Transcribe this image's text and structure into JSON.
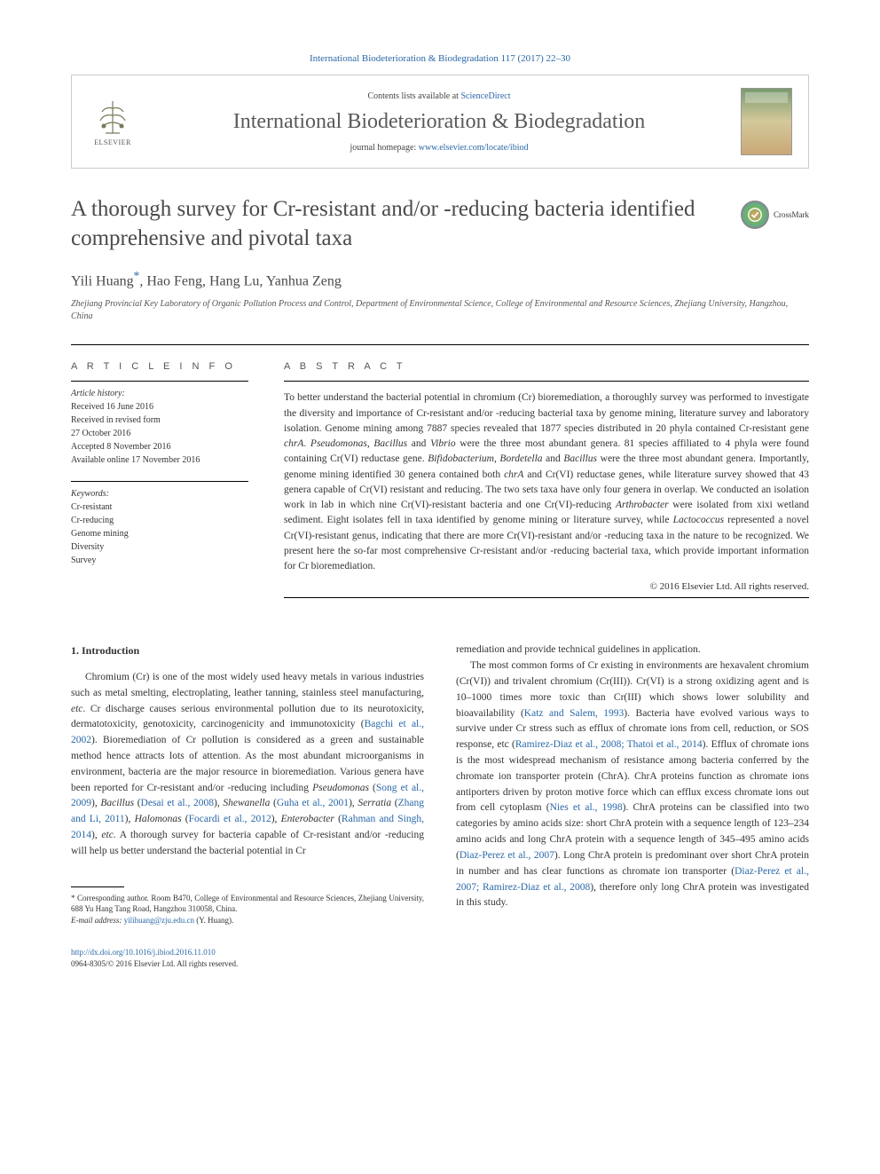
{
  "journal_ref": "International Biodeterioration & Biodegradation 117 (2017) 22–30",
  "header": {
    "contents_prefix": "Contents lists available at ",
    "contents_link": "ScienceDirect",
    "journal_title": "International Biodeterioration & Biodegradation",
    "homepage_prefix": "journal homepage: ",
    "homepage_link": "www.elsevier.com/locate/ibiod",
    "publisher": "ELSEVIER"
  },
  "article": {
    "title": "A thorough survey for Cr-resistant and/or -reducing bacteria identified comprehensive and pivotal taxa",
    "crossmark": "CrossMark",
    "authors_html": "Yili Huang<sup class=\"asterisk\">*</sup>, Hao Feng, Hang Lu, Yanhua Zeng",
    "affiliation": "Zhejiang Provincial Key Laboratory of Organic Pollution Process and Control, Department of Environmental Science, College of Environmental and Resource Sciences, Zhejiang University, Hangzhou, China"
  },
  "info": {
    "heading": "A R T I C L E  I N F O",
    "history_label": "Article history:",
    "history": [
      "Received 16 June 2016",
      "Received in revised form",
      "27 October 2016",
      "Accepted 8 November 2016",
      "Available online 17 November 2016"
    ],
    "keywords_label": "Keywords:",
    "keywords": [
      "Cr-resistant",
      "Cr-reducing",
      "Genome mining",
      "Diversity",
      "Survey"
    ]
  },
  "abstract": {
    "heading": "A B S T R A C T",
    "text_html": "To better understand the bacterial potential in chromium (Cr) bioremediation, a thoroughly survey was performed to investigate the diversity and importance of Cr-resistant and/or -reducing bacterial taxa by genome mining, literature survey and laboratory isolation. Genome mining among 7887 species revealed that 1877 species distributed in 20 phyla contained Cr-resistant gene <span class=\"italic\">chrA</span>. <span class=\"italic\">Pseudomonas</span>, <span class=\"italic\">Bacillus</span> and <span class=\"italic\">Vibrio</span> were the three most abundant genera. 81 species affiliated to 4 phyla were found containing Cr(VI) reductase gene. <span class=\"italic\">Bifidobacterium</span>, <span class=\"italic\">Bordetella</span> and <span class=\"italic\">Bacillus</span> were the three most abundant genera. Importantly, genome mining identified 30 genera contained both <span class=\"italic\">chrA</span> and Cr(VI) reductase genes, while literature survey showed that 43 genera capable of Cr(VI) resistant and reducing. The two sets taxa have only four genera in overlap. We conducted an isolation work in lab in which nine Cr(VI)-resistant bacteria and one Cr(VI)-reducing <span class=\"italic\">Arthrobacter</span> were isolated from xixi wetland sediment. Eight isolates fell in taxa identified by genome mining or literature survey, while <span class=\"italic\">Lactococcus</span> represented a novel Cr(VI)-resistant genus, indicating that there are more Cr(VI)-resistant and/or -reducing taxa in the nature to be recognized. We present here the so-far most comprehensive Cr-resistant and/or -reducing bacterial taxa, which provide important information for Cr bioremediation.",
    "copyright": "© 2016 Elsevier Ltd. All rights reserved."
  },
  "body": {
    "section_number": "1.",
    "section_title": "Introduction",
    "col1_html": "Chromium (Cr) is one of the most widely used heavy metals in various industries such as metal smelting, electroplating, leather tanning, stainless steel manufacturing, <span class=\"italic\">etc</span>. Cr discharge causes serious environmental pollution due to its neurotoxicity, dermatotoxicity, genotoxicity, carcinogenicity and immunotoxicity (<span class=\"ref-link\">Bagchi et al., 2002</span>). Bioremediation of Cr pollution is considered as a green and sustainable method hence attracts lots of attention. As the most abundant microorganisms in environment, bacteria are the major resource in bioremediation. Various genera have been reported for Cr-resistant and/or -reducing including <span class=\"italic\">Pseudomonas</span> (<span class=\"ref-link\">Song et al., 2009</span>), <span class=\"italic\">Bacillus</span> (<span class=\"ref-link\">Desai et al., 2008</span>), <span class=\"italic\">Shewanella</span> (<span class=\"ref-link\">Guha et al., 2001</span>), <span class=\"italic\">Serratia</span> (<span class=\"ref-link\">Zhang and Li, 2011</span>), <span class=\"italic\">Halomonas</span> (<span class=\"ref-link\">Focardi et al., 2012</span>), <span class=\"italic\">Enterobacter</span> (<span class=\"ref-link\">Rahman and Singh, 2014</span>), <span class=\"italic\">etc</span>. A thorough survey for bacteria capable of Cr-resistant and/or -reducing will help us better understand the bacterial potential in Cr",
    "col2_p1_html": "remediation and provide technical guidelines in application.",
    "col2_p2_html": "The most common forms of Cr existing in environments are hexavalent chromium (Cr(VI)) and trivalent chromium (Cr(III)). Cr(VI) is a strong oxidizing agent and is 10–1000 times more toxic than Cr(III) which shows lower solubility and bioavailability (<span class=\"ref-link\">Katz and Salem, 1993</span>). Bacteria have evolved various ways to survive under Cr stress such as efflux of chromate ions from cell, reduction, or SOS response, etc (<span class=\"ref-link\">Ramirez-Diaz et al., 2008; Thatoi et al., 2014</span>). Efflux of chromate ions is the most widespread mechanism of resistance among bacteria conferred by the chromate ion transporter protein (ChrA). ChrA proteins function as chromate ions antiporters driven by proton motive force which can efflux excess chromate ions out from cell cytoplasm (<span class=\"ref-link\">Nies et al., 1998</span>). ChrA proteins can be classified into two categories by amino acids size: short ChrA protein with a sequence length of 123–234 amino acids and long ChrA protein with a sequence length of 345–495 amino acids (<span class=\"ref-link\">Diaz-Perez et al., 2007</span>). Long ChrA protein is predominant over short ChrA protein in number and has clear functions as chromate ion transporter (<span class=\"ref-link\">Diaz-Perez et al., 2007; Ramirez-Diaz et al., 2008</span>), therefore only long ChrA protein was investigated in this study."
  },
  "footnote": {
    "corr_html": "* Corresponding author. Room B470, College of Environmental and Resource Sciences, Zhejiang University, 688 Yu Hang Tang Road, Hangzhou 310058, China.",
    "email_label": "E-mail address:",
    "email": "yilihuang@zju.edu.cn",
    "email_suffix": "(Y. Huang)."
  },
  "footer": {
    "doi": "http://dx.doi.org/10.1016/j.ibiod.2016.11.010",
    "issn_line": "0964-8305/© 2016 Elsevier Ltd. All rights reserved."
  }
}
